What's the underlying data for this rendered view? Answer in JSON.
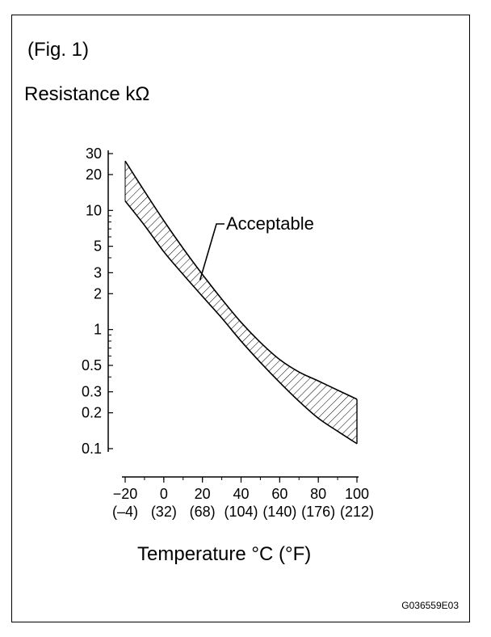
{
  "figure_label": "(Fig. 1)",
  "figure_code": "G036559E03",
  "chart_data": {
    "type": "area",
    "ylabel": "Resistance kΩ",
    "xlabel": "Temperature °C (°F)",
    "y_scale": "log",
    "ylim": [
      0.1,
      30
    ],
    "xlim": [
      -20,
      100
    ],
    "y_ticks": [
      {
        "value": 30,
        "label": "30"
      },
      {
        "value": 20,
        "label": "20"
      },
      {
        "value": 10,
        "label": "10"
      },
      {
        "value": 5,
        "label": "5"
      },
      {
        "value": 3,
        "label": "3"
      },
      {
        "value": 2,
        "label": "2"
      },
      {
        "value": 1,
        "label": "1"
      },
      {
        "value": 0.5,
        "label": "0.5"
      },
      {
        "value": 0.3,
        "label": "0.3"
      },
      {
        "value": 0.2,
        "label": "0.2"
      },
      {
        "value": 0.1,
        "label": "0.1"
      }
    ],
    "x_ticks": [
      {
        "value": -20,
        "label": "−20",
        "label_f": "(–4)"
      },
      {
        "value": 0,
        "label": "0",
        "label_f": "(32)"
      },
      {
        "value": 20,
        "label": "20",
        "label_f": "(68)"
      },
      {
        "value": 40,
        "label": "40",
        "label_f": "(104)"
      },
      {
        "value": 60,
        "label": "60",
        "label_f": "(140)"
      },
      {
        "value": 80,
        "label": "80",
        "label_f": "(176)"
      },
      {
        "value": 100,
        "label": "100",
        "label_f": "(212)"
      }
    ],
    "series": [
      {
        "role": "upper bound",
        "x": [
          -20,
          -10,
          0,
          10,
          20,
          30,
          40,
          50,
          60,
          70,
          80,
          90,
          100
        ],
        "y": [
          26,
          14.5,
          8.2,
          4.8,
          2.9,
          1.8,
          1.15,
          0.78,
          0.56,
          0.44,
          0.37,
          0.31,
          0.26
        ]
      },
      {
        "role": "lower bound",
        "x": [
          -20,
          -10,
          0,
          10,
          20,
          30,
          40,
          50,
          60,
          70,
          80,
          90,
          100
        ],
        "y": [
          12,
          7.5,
          4.5,
          2.9,
          1.9,
          1.25,
          0.8,
          0.53,
          0.36,
          0.25,
          0.18,
          0.14,
          0.11
        ]
      }
    ],
    "annotation": "Acceptable",
    "annotation_point": {
      "x": 20,
      "y": 2.6
    },
    "colors": {
      "line": "#000000",
      "hatch": "#000000",
      "background": "#ffffff"
    }
  }
}
